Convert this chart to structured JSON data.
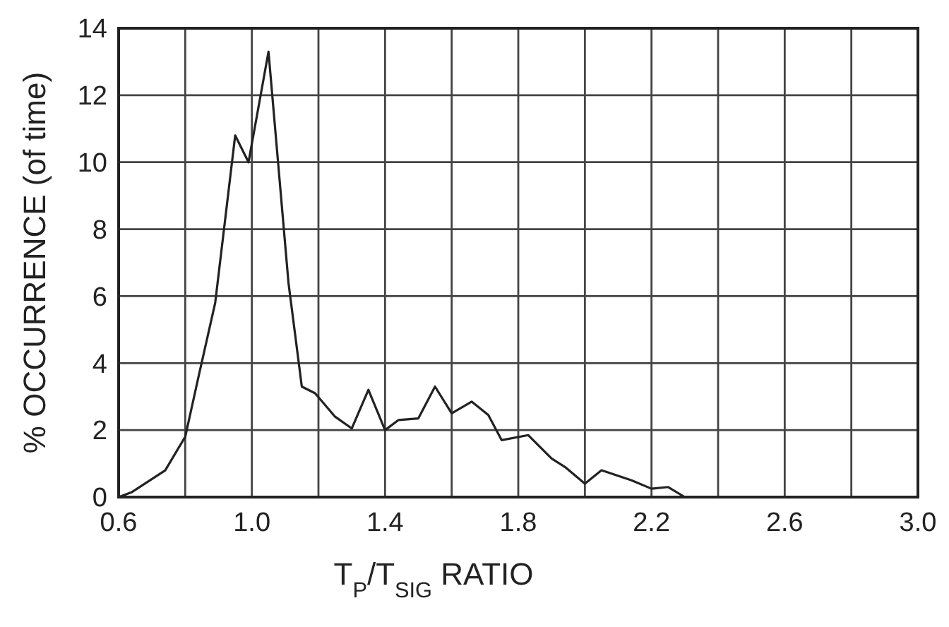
{
  "chart_data": {
    "type": "line",
    "xlabel": "T$_{P}$/T$_{SIG}$ RATIO",
    "ylabel": "% OCCURRENCE (of time)",
    "x": [
      0.6,
      0.64,
      0.74,
      0.8,
      0.84,
      0.89,
      0.95,
      0.99,
      1.05,
      1.11,
      1.15,
      1.19,
      1.25,
      1.3,
      1.35,
      1.4,
      1.44,
      1.5,
      1.55,
      1.6,
      1.66,
      1.71,
      1.75,
      1.83,
      1.9,
      1.94,
      2.0,
      2.05,
      2.14,
      2.2,
      2.25,
      2.3
    ],
    "series": [
      {
        "color": "#222222",
        "values": [
          0,
          0.15,
          0.8,
          1.8,
          3.6,
          5.8,
          10.8,
          10,
          13.3,
          6.4,
          3.3,
          3.1,
          2.4,
          2.05,
          3.2,
          2,
          2.3,
          2.35,
          3.3,
          2.5,
          2.85,
          2.45,
          1.7,
          1.85,
          1.15,
          0.9,
          0.4,
          0.8,
          0.5,
          0.25,
          0.3,
          0
        ]
      }
    ],
    "xlim": [
      0.6,
      3.0
    ],
    "xticks": [
      {
        "value": 0.6,
        "label": "0.6"
      },
      {
        "value": 0.8,
        "label": null
      },
      {
        "value": 1.0,
        "label": "1.0"
      },
      {
        "value": 1.2,
        "label": null
      },
      {
        "value": 1.4,
        "label": "1.4"
      },
      {
        "value": 1.6,
        "label": null
      },
      {
        "value": 1.8,
        "label": "1.8"
      },
      {
        "value": 2.0,
        "label": null
      },
      {
        "value": 2.2,
        "label": "2.2"
      },
      {
        "value": 2.4,
        "label": null
      },
      {
        "value": 2.6,
        "label": "2.6"
      },
      {
        "value": 2.8,
        "label": null
      },
      {
        "value": 3.0,
        "label": "3.0"
      }
    ],
    "ylim": [
      0,
      14
    ],
    "yticks": [
      0,
      2,
      4,
      6,
      8,
      10,
      12,
      14
    ],
    "grid": true,
    "marker": "none",
    "line_style": "solid"
  }
}
